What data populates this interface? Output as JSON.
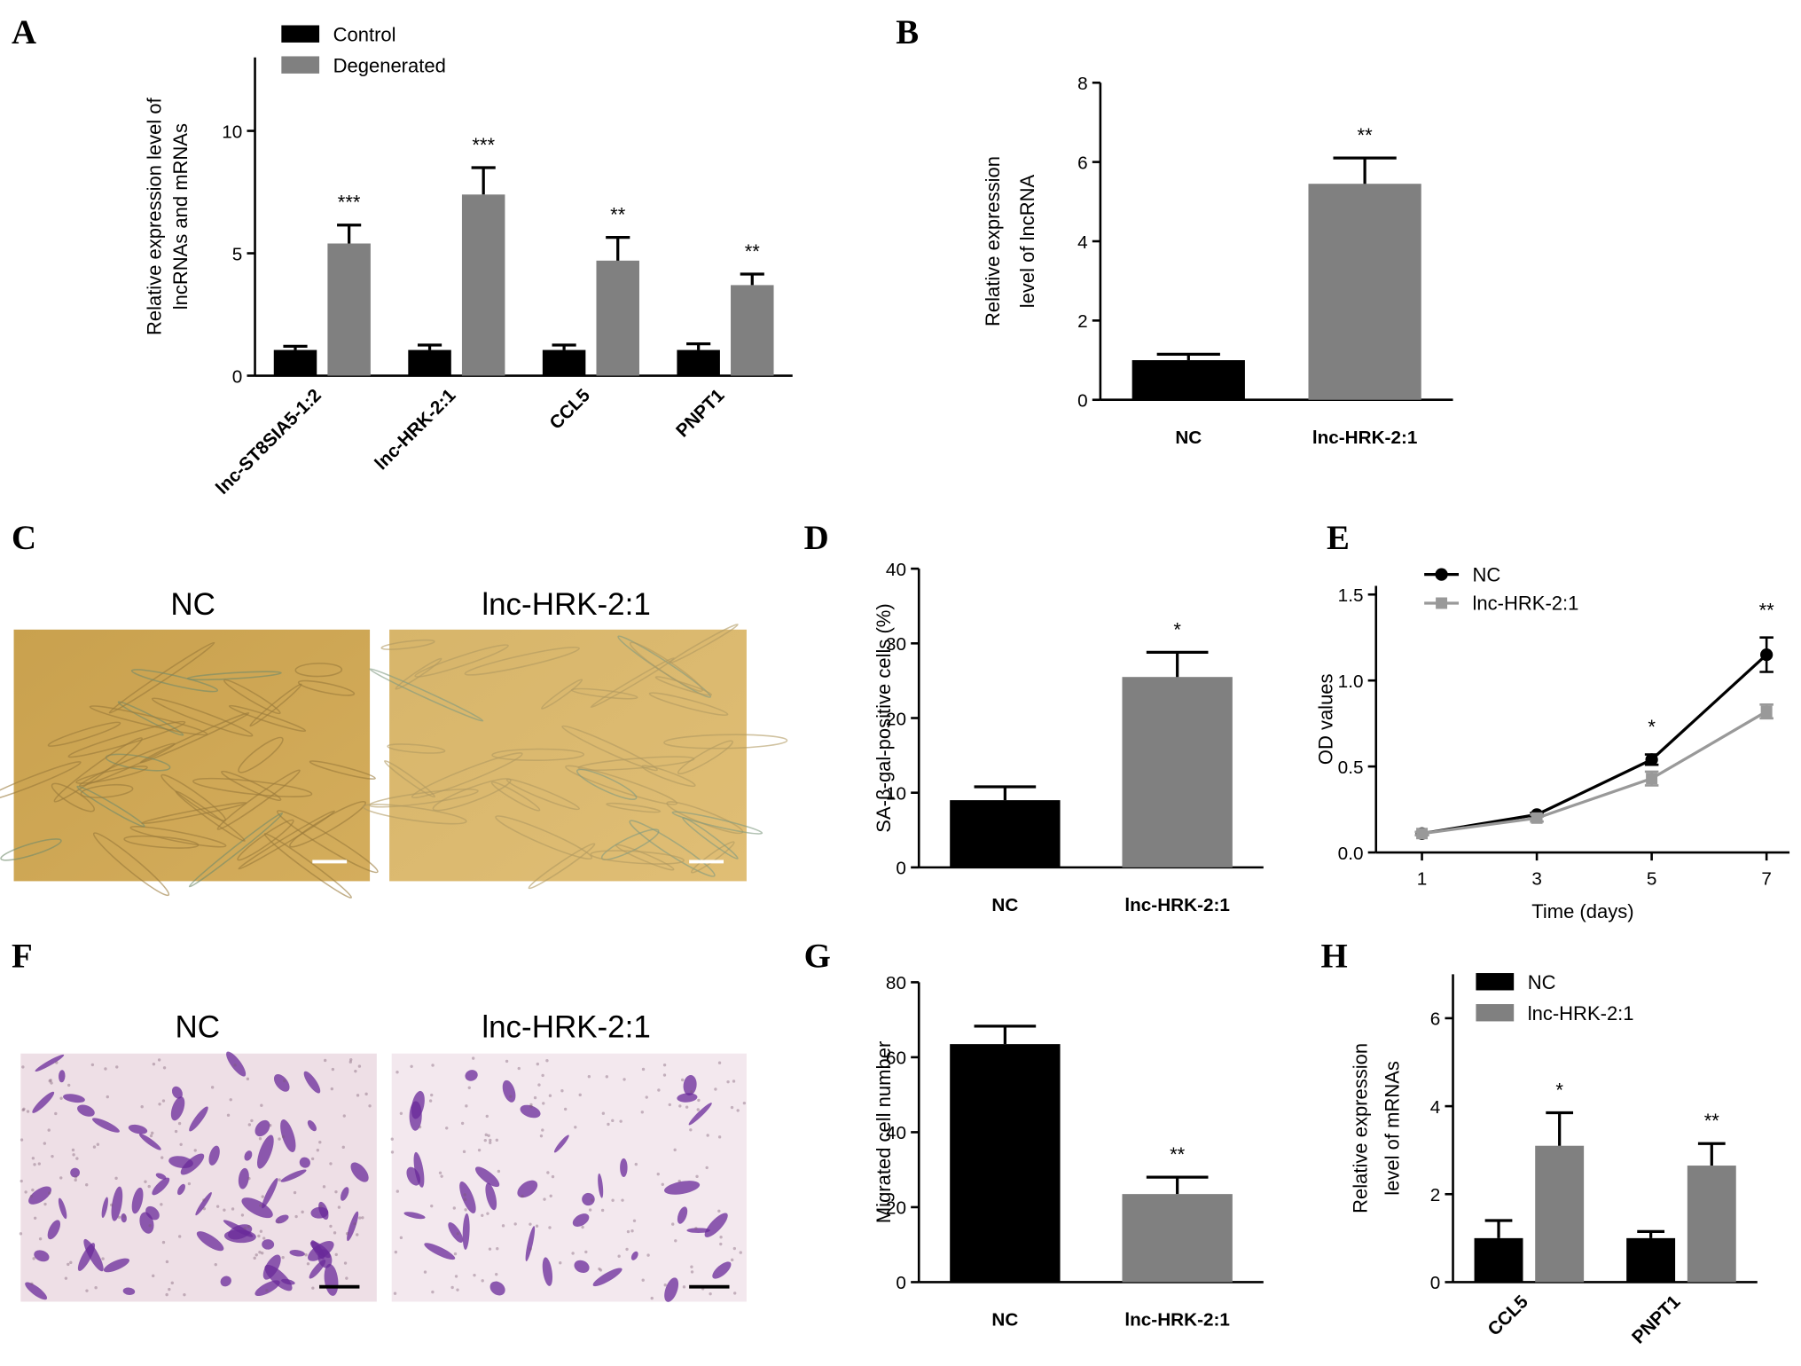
{
  "chart_data": [
    {
      "panel": "A",
      "type": "bar",
      "ylabel": [
        "Relative expression level of",
        "lncRNAs and mRNAs"
      ],
      "categories": [
        "lnc-ST8SIA5-1:2",
        "lnc-HRK-2:1",
        "CCL5",
        "PNPT1"
      ],
      "series": [
        {
          "name": "Control",
          "color": "#000000",
          "values": [
            1.05,
            1.05,
            1.05,
            1.05
          ],
          "errors": [
            0.15,
            0.2,
            0.2,
            0.25
          ]
        },
        {
          "name": "Degenerated",
          "color": "#808080",
          "values": [
            5.4,
            7.4,
            4.7,
            3.7
          ],
          "errors": [
            0.75,
            1.1,
            0.95,
            0.45
          ],
          "annotations": [
            "***",
            "***",
            "**",
            "**"
          ]
        }
      ],
      "ylim": [
        0,
        13
      ],
      "yticks": [
        0,
        5,
        10
      ],
      "legend": "upper left"
    },
    {
      "panel": "B",
      "type": "bar",
      "ylabel": [
        "Relative expression",
        "level of lncRNA"
      ],
      "categories": [
        "NC",
        "lnc-HRK-2:1"
      ],
      "values": [
        1.0,
        5.45
      ],
      "errors": [
        0.15,
        0.65
      ],
      "colors": [
        "#000000",
        "#808080"
      ],
      "annotations": [
        {
          "index": 1,
          "text": "**"
        }
      ],
      "ylim": [
        0,
        8
      ],
      "yticks": [
        0,
        2,
        4,
        6,
        8
      ]
    },
    {
      "panel": "D",
      "type": "bar",
      "ylabel": [
        "SA-β-gal-positive cells (%)"
      ],
      "categories": [
        "NC",
        "lnc-HRK-2:1"
      ],
      "values": [
        9,
        25.5
      ],
      "errors": [
        1.8,
        3.3
      ],
      "colors": [
        "#000000",
        "#808080"
      ],
      "annotations": [
        {
          "index": 1,
          "text": "*"
        }
      ],
      "ylim": [
        0,
        40
      ],
      "yticks": [
        0,
        10,
        20,
        30,
        40
      ]
    },
    {
      "panel": "E",
      "type": "line",
      "xlabel": "Time (days)",
      "ylabel": [
        "OD values"
      ],
      "x": [
        1,
        3,
        5,
        7
      ],
      "series": [
        {
          "name": "NC",
          "color": "#000000",
          "marker": "circle",
          "values": [
            0.11,
            0.22,
            0.54,
            1.15
          ],
          "errors": [
            0.01,
            0.01,
            0.03,
            0.1
          ]
        },
        {
          "name": "lnc-HRK-2:1",
          "color": "#999999",
          "marker": "square",
          "values": [
            0.11,
            0.2,
            0.43,
            0.82
          ],
          "errors": [
            0.01,
            0.02,
            0.04,
            0.04
          ]
        }
      ],
      "xlim": [
        0.2,
        7.4
      ],
      "xticks": [
        1,
        3,
        5,
        7
      ],
      "ylim": [
        0,
        1.55
      ],
      "yticks": [
        {
          "value": 0,
          "label": "0.0"
        },
        {
          "value": 0.5,
          "label": "0.5"
        },
        {
          "value": 1,
          "label": "1.0"
        },
        {
          "value": 1.5,
          "label": "1.5"
        }
      ],
      "annotations": [
        {
          "x": 5,
          "text": "*"
        },
        {
          "x": 7,
          "text": "**"
        }
      ],
      "legend": "upper left"
    },
    {
      "panel": "G",
      "type": "bar",
      "ylabel": [
        "Migrated cell number"
      ],
      "categories": [
        "NC",
        "lnc-HRK-2:1"
      ],
      "values": [
        63.5,
        23.5
      ],
      "errors": [
        4.8,
        4.5
      ],
      "colors": [
        "#000000",
        "#808080"
      ],
      "annotations": [
        {
          "index": 1,
          "text": "**"
        }
      ],
      "ylim": [
        0,
        80
      ],
      "yticks": [
        0,
        20,
        40,
        60,
        80
      ]
    },
    {
      "panel": "H",
      "type": "bar",
      "ylabel": [
        "Relative expression",
        "level of mRNAs"
      ],
      "categories": [
        "CCL5",
        "PNPT1"
      ],
      "series": [
        {
          "name": "NC",
          "color": "#000000",
          "values": [
            1.0,
            1.0
          ],
          "errors": [
            0.4,
            0.15
          ]
        },
        {
          "name": "lnc-HRK-2:1",
          "color": "#808080",
          "values": [
            3.1,
            2.65
          ],
          "errors": [
            0.75,
            0.5
          ],
          "annotations": [
            "*",
            "**"
          ]
        }
      ],
      "ylim": [
        0,
        7
      ],
      "yticks": [
        0,
        2,
        4,
        6
      ],
      "legend": "upper left"
    }
  ],
  "images": [
    {
      "panel": "C",
      "labels": [
        "NC",
        "lnc-HRK-2:1"
      ]
    },
    {
      "panel": "F",
      "labels": [
        "NC",
        "lnc-HRK-2:1"
      ]
    }
  ]
}
